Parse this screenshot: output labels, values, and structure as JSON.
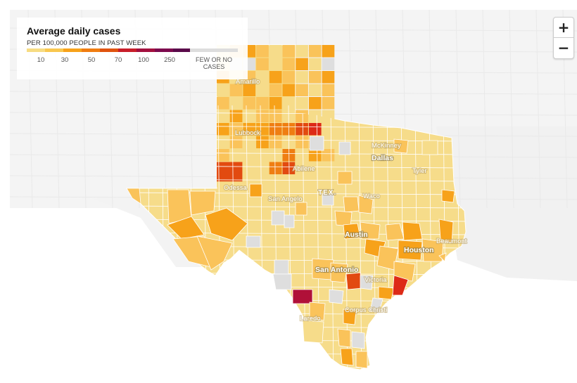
{
  "legend": {
    "title": "Average daily cases",
    "subtitle": "PER 100,000 PEOPLE IN PAST WEEK",
    "ticks": [
      "10",
      "30",
      "50",
      "70",
      "100",
      "250"
    ],
    "scale_colors": [
      "#f7dc82",
      "#f9c74f",
      "#f7a21a",
      "#f07d11",
      "#e0530f",
      "#c81e2a",
      "#a3103e",
      "#7d0a4e",
      "#5a0a4a"
    ],
    "no_cases_label": "FEW OR NO CASES",
    "no_cases_color": "#dddddd"
  },
  "zoom": {
    "in_label": "+",
    "out_label": "−"
  },
  "map": {
    "state_label": "TEX.",
    "cities": [
      {
        "name": "Amarillo",
        "major": false
      },
      {
        "name": "Lubbock",
        "major": false
      },
      {
        "name": "McKinney",
        "major": false
      },
      {
        "name": "Dallas",
        "major": true
      },
      {
        "name": "Abilene",
        "major": false
      },
      {
        "name": "Tyler",
        "major": false
      },
      {
        "name": "Odessa",
        "major": false
      },
      {
        "name": "San Angelo",
        "major": false
      },
      {
        "name": "Waco",
        "major": false
      },
      {
        "name": "Austin",
        "major": true
      },
      {
        "name": "Houston",
        "major": true
      },
      {
        "name": "Beaumont",
        "major": false
      },
      {
        "name": "San Antonio",
        "major": true
      },
      {
        "name": "Victoria",
        "major": false
      },
      {
        "name": "Corpus Christi",
        "major": false
      },
      {
        "name": "Laredo",
        "major": false
      }
    ],
    "county_colors": {
      "low": "#f6dc8a",
      "mid": "#fac35a",
      "high": "#f7a21a",
      "higher": "#ef7e12",
      "severe": "#e24a10",
      "very_severe": "#dd2a17",
      "extreme": "#b01038",
      "none": "#dedede"
    }
  }
}
